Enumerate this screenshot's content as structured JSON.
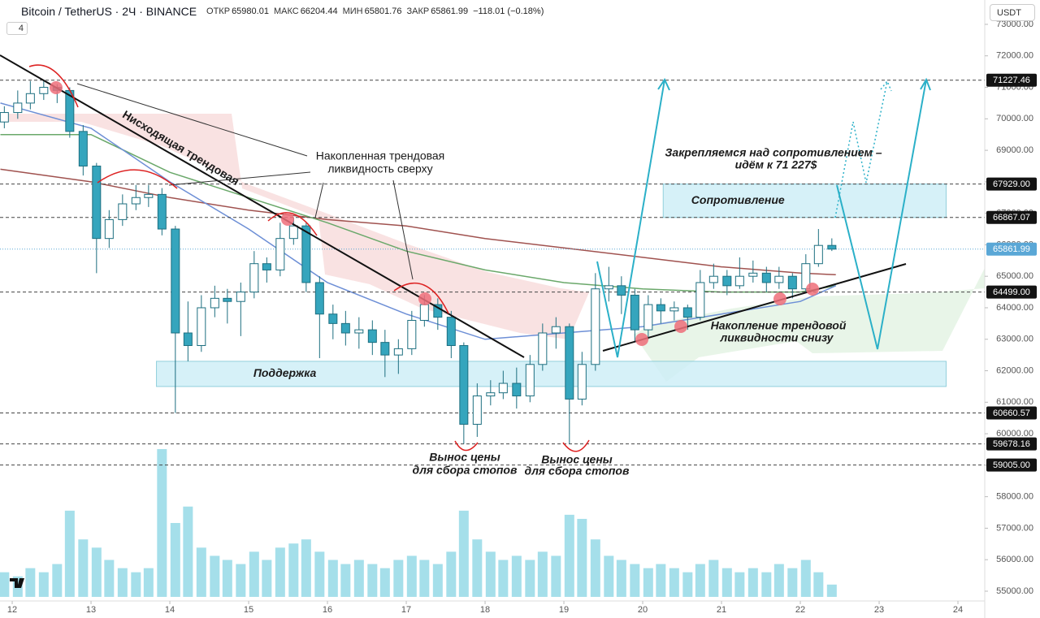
{
  "header": {
    "symbol": "Bitcoin / TetherUS · 2Ч · BINANCE",
    "fields": [
      {
        "label": "ОТКР",
        "value": 65980.01
      },
      {
        "label": "МАКС",
        "value": 66204.44
      },
      {
        "label": "МИН",
        "value": 65801.76
      },
      {
        "label": "ЗАКР",
        "value": 65861.99
      }
    ],
    "change": "−118.01 (−0.18%)",
    "indicator_count": 4,
    "currency": "USDT"
  },
  "chart_data": {
    "type": "candlestick",
    "x": [
      11.9,
      12.07,
      12.23,
      12.4,
      12.57,
      12.73,
      12.9,
      13.07,
      13.23,
      13.4,
      13.57,
      13.73,
      13.9,
      14.07,
      14.23,
      14.4,
      14.57,
      14.73,
      14.9,
      15.07,
      15.23,
      15.4,
      15.57,
      15.73,
      15.9,
      16.07,
      16.23,
      16.4,
      16.57,
      16.73,
      16.9,
      17.07,
      17.23,
      17.4,
      17.57,
      17.73,
      17.9,
      18.07,
      18.23,
      18.4,
      18.57,
      18.73,
      18.9,
      19.07,
      19.23,
      19.4,
      19.57,
      19.73,
      19.9,
      20.07,
      20.23,
      20.4,
      20.57,
      20.73,
      20.9,
      21.07,
      21.23,
      21.4,
      21.57,
      21.73,
      21.9,
      22.07,
      22.23,
      22.4
    ],
    "open": [
      69900,
      70200,
      70500,
      70800,
      71000,
      70900,
      69600,
      68500,
      66200,
      66800,
      67300,
      67500,
      67600,
      66500,
      63200,
      62800,
      64000,
      64300,
      64200,
      64500,
      65400,
      65200,
      66200,
      66600,
      64800,
      63800,
      63500,
      63200,
      63300,
      62900,
      62500,
      62700,
      63600,
      64100,
      63700,
      62800,
      60300,
      61200,
      61300,
      61600,
      61200,
      62200,
      63200,
      63400,
      61100,
      62200,
      64600,
      64700,
      64400,
      63300,
      64100,
      63900,
      64000,
      63700,
      64800,
      65000,
      64700,
      65000,
      65100,
      64800,
      65000,
      64600,
      65400,
      65980.01
    ],
    "high": [
      70400,
      70900,
      71200,
      71227,
      71100,
      71000,
      69800,
      68600,
      67100,
      67600,
      67900,
      67900,
      67800,
      66600,
      64200,
      64400,
      64700,
      64600,
      64800,
      65800,
      65600,
      66700,
      66870,
      66700,
      65000,
      64100,
      63900,
      63700,
      63600,
      63300,
      63000,
      63900,
      64400,
      64300,
      63900,
      62900,
      61600,
      61700,
      62000,
      62100,
      62500,
      63500,
      63700,
      63500,
      62600,
      65100,
      65300,
      65000,
      64600,
      64400,
      64300,
      64200,
      64100,
      65200,
      65400,
      65200,
      65600,
      65500,
      65300,
      65300,
      65100,
      65700,
      66500,
      66204.44
    ],
    "low": [
      69700,
      70000,
      70300,
      70600,
      70500,
      69400,
      68200,
      65100,
      65900,
      66600,
      67100,
      67200,
      66300,
      60660,
      62300,
      62600,
      63700,
      63500,
      63100,
      64300,
      64800,
      65000,
      66000,
      64500,
      62400,
      63000,
      62800,
      62700,
      62500,
      61800,
      61900,
      62500,
      63400,
      63300,
      62400,
      59678,
      59900,
      60900,
      61100,
      60800,
      61000,
      62000,
      62700,
      59678,
      60900,
      62000,
      64200,
      63800,
      62900,
      63000,
      63500,
      63600,
      63300,
      63600,
      64600,
      64400,
      64600,
      64800,
      64500,
      64600,
      64300,
      64500,
      65300,
      65801.76
    ],
    "close": [
      70200,
      70500,
      70800,
      71000,
      70900,
      69600,
      68500,
      66200,
      66800,
      67300,
      67500,
      67600,
      66500,
      63200,
      62800,
      64000,
      64300,
      64200,
      64500,
      65400,
      65200,
      66200,
      66600,
      64800,
      63800,
      63500,
      63200,
      63300,
      62900,
      62500,
      62700,
      63600,
      64100,
      63700,
      62800,
      60300,
      61200,
      61300,
      61600,
      61200,
      62200,
      63200,
      63400,
      61100,
      62200,
      64600,
      64700,
      64400,
      63300,
      64100,
      63900,
      64000,
      63700,
      64800,
      65000,
      64700,
      65000,
      65100,
      64800,
      65000,
      64600,
      65400,
      65980,
      65861.99
    ],
    "volume": [
      30,
      25,
      35,
      30,
      40,
      105,
      70,
      60,
      45,
      35,
      30,
      35,
      180,
      90,
      110,
      60,
      50,
      45,
      40,
      55,
      45,
      60,
      65,
      70,
      55,
      45,
      40,
      45,
      40,
      35,
      45,
      50,
      45,
      40,
      55,
      105,
      70,
      55,
      45,
      50,
      45,
      55,
      50,
      100,
      95,
      70,
      50,
      45,
      40,
      35,
      40,
      35,
      30,
      40,
      45,
      35,
      30,
      35,
      30,
      40,
      35,
      45,
      30,
      15
    ],
    "up_color": "#ffffff",
    "down_color": "#35a5bd",
    "edge_color": "#1d6f80",
    "volume_color": "#8fd7e5",
    "xlim": [
      11.845,
      24.34
    ],
    "xticks": [
      12,
      13,
      14,
      15,
      16,
      17,
      18,
      19,
      20,
      21,
      22,
      23,
      24
    ],
    "ylim": [
      54690,
      73773
    ],
    "yticks": [
      {
        "value": 55000,
        "label": "55000.00"
      },
      {
        "value": 56000,
        "label": "56000.00"
      },
      {
        "value": 57000,
        "label": "57000.00"
      },
      {
        "value": 58000,
        "label": "58000.00"
      },
      {
        "value": 59000,
        "label": "59000.00"
      },
      {
        "value": 60000,
        "label": "60000.00"
      },
      {
        "value": 61000,
        "label": "61000.00"
      },
      {
        "value": 62000,
        "label": "62000.00"
      },
      {
        "value": 63000,
        "label": "63000.00"
      },
      {
        "value": 64000,
        "label": "64000.00"
      },
      {
        "value": 65000,
        "label": "65000.00"
      },
      {
        "value": 66000,
        "label": "66000.00"
      },
      {
        "value": 67000,
        "label": "67000.00"
      },
      {
        "value": 68000,
        "label": "68000.00"
      },
      {
        "value": 69000,
        "label": "69000.00"
      },
      {
        "value": 70000,
        "label": "70000.00"
      },
      {
        "value": 71000,
        "label": "71000.00"
      },
      {
        "value": 72000,
        "label": "72000.00"
      },
      {
        "value": 73000,
        "label": "73000.00"
      }
    ],
    "levels": [
      71227.46,
      {
        "value": 67929,
        "label": "67929.00"
      },
      66867.07,
      {
        "value": 64499,
        "label": "64499.00"
      },
      60660.57,
      59678.16,
      {
        "value": 59005,
        "label": "59005.00"
      }
    ],
    "current_price": 65861.99,
    "current_color": "#5aa7d6",
    "lines": [
      {
        "color": "#a0524f",
        "x": [
          11.85,
          13,
          14,
          15,
          16,
          17,
          18,
          19,
          20,
          21,
          22,
          22.45
        ],
        "values": [
          68400,
          68000,
          67500,
          67100,
          66800,
          66600,
          66200,
          65900,
          65600,
          65300,
          65100,
          65050
        ]
      },
      {
        "color": "#6aa86a",
        "x": [
          11.85,
          13,
          14,
          15,
          16,
          17,
          18,
          19,
          20,
          21,
          22,
          22.45
        ],
        "values": [
          69500,
          69500,
          68300,
          67500,
          66700,
          65800,
          65200,
          64800,
          64600,
          64500,
          64500,
          64700
        ]
      },
      {
        "color": "#6d8fd6",
        "x": [
          11.85,
          13,
          14,
          15,
          16,
          17,
          18,
          19,
          20,
          21,
          22,
          22.45
        ],
        "values": [
          70500,
          69700,
          68000,
          66500,
          64800,
          63800,
          63000,
          63200,
          63400,
          63800,
          64200,
          64700
        ]
      }
    ],
    "zones": [
      {
        "label": "Сопротивление",
        "ylim": [
          66867.07,
          67929
        ],
        "xlim": [
          20.26,
          23.85
        ]
      },
      {
        "label": "Поддержка",
        "ylim": [
          61500,
          62300
        ],
        "xlim": [
          13.83,
          23.85
        ]
      }
    ],
    "annotations": {
      "downtrend": "Нисходящая трендовая",
      "liquidity_top": [
        "Накопленная трендовая",
        "ликвидность сверху"
      ],
      "target": [
        "Закрепляемся над сопротивлением –",
        "идём к 71 227$"
      ],
      "liquidity_bottom": [
        "Накопление трендовой",
        "ликвидности снизу"
      ],
      "stops_1": [
        "Вынос цены",
        "для сбора стопов"
      ],
      "stops_2": [
        "Вынос цены",
        "для сбора стопов"
      ]
    }
  }
}
